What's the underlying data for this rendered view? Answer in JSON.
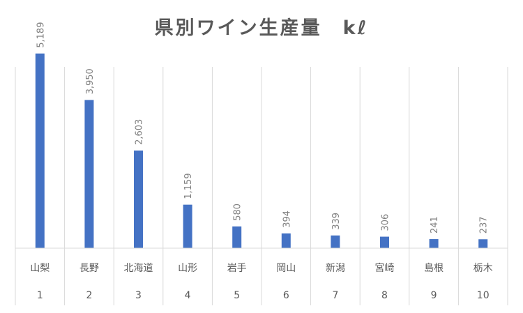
{
  "chart_data": {
    "type": "bar",
    "title": "県別ワイン生産量　kℓ",
    "categories": [
      "山梨",
      "長野",
      "北海道",
      "山形",
      "岩手",
      "岡山",
      "新潟",
      "宮崎",
      "島根",
      "栃木"
    ],
    "ranks": [
      "1",
      "2",
      "3",
      "4",
      "5",
      "6",
      "7",
      "8",
      "9",
      "10"
    ],
    "values": [
      5189,
      3950,
      2603,
      1159,
      580,
      394,
      339,
      306,
      241,
      237
    ],
    "data_labels": [
      "5,189",
      "3,950",
      "2,603",
      "1,159",
      "580",
      "394",
      "339",
      "306",
      "241",
      "237"
    ],
    "ylim": [
      0,
      5500
    ],
    "bar_color": "#4472c4",
    "grid": false,
    "legend": "none"
  }
}
